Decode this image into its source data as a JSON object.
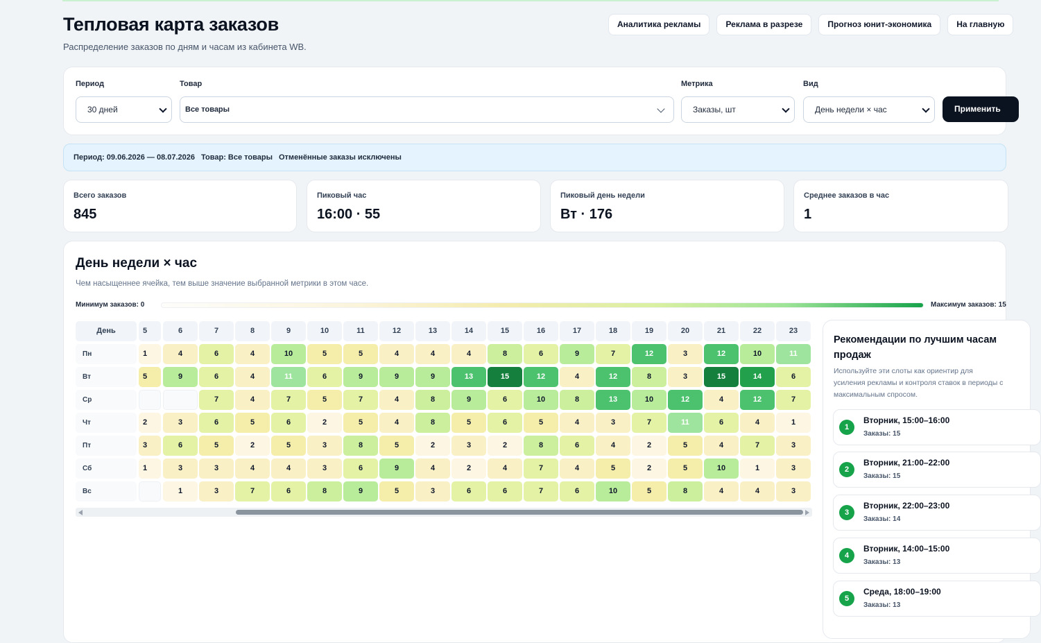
{
  "header": {
    "title": "Тепловая карта заказов",
    "subtitle": "Распределение заказов по дням и часам из кабинета WB.",
    "nav": [
      "Аналитика рекламы",
      "Реклама в разрезе",
      "Прогноз юнит-экономика",
      "На главную"
    ]
  },
  "filters": {
    "period": {
      "label": "Период",
      "value": "30 дней"
    },
    "product": {
      "label": "Товар",
      "value": "Все товары"
    },
    "metric": {
      "label": "Метрика",
      "value": "Заказы, шт"
    },
    "view": {
      "label": "Вид",
      "value": "День недели × час"
    },
    "apply": "Применить"
  },
  "info": {
    "period": "Период: 09.06.2026 — 08.07.2026",
    "product": "Товар: Все товары",
    "note": "Отменённые заказы исключены"
  },
  "kpis": [
    {
      "label": "Всего заказов",
      "value": "845"
    },
    {
      "label": "Пиковый час",
      "value": "16:00 · 55"
    },
    {
      "label": "Пиковый день недели",
      "value": "Вт · 176"
    },
    {
      "label": "Среднее заказов в час",
      "value": "1"
    }
  ],
  "heatmap": {
    "title": "День недели × час",
    "subtitle": "Чем насыщеннее ячейка, тем выше значение выбранной метрики в этом часе.",
    "legend_min": "Минимум заказов: 0",
    "legend_max": "Максимум заказов: 15",
    "day_header": "День",
    "hours": [
      "5",
      "6",
      "7",
      "8",
      "9",
      "10",
      "11",
      "12",
      "13",
      "14",
      "15",
      "16",
      "17",
      "18",
      "19",
      "20",
      "21",
      "22",
      "23"
    ],
    "days": [
      "Пн",
      "Вт",
      "Ср",
      "Чт",
      "Пт",
      "Сб",
      "Вс"
    ],
    "values": [
      [
        1,
        4,
        6,
        4,
        10,
        5,
        5,
        4,
        4,
        4,
        8,
        6,
        9,
        7,
        12,
        3,
        12,
        10,
        11
      ],
      [
        5,
        9,
        6,
        4,
        11,
        6,
        9,
        9,
        9,
        13,
        15,
        12,
        4,
        12,
        8,
        3,
        15,
        14,
        6
      ],
      [
        null,
        null,
        7,
        4,
        7,
        5,
        7,
        4,
        8,
        9,
        6,
        10,
        8,
        13,
        10,
        12,
        4,
        12,
        7
      ],
      [
        2,
        3,
        6,
        5,
        6,
        2,
        5,
        4,
        8,
        5,
        6,
        5,
        4,
        3,
        7,
        11,
        6,
        4,
        1
      ],
      [
        3,
        6,
        5,
        2,
        5,
        3,
        8,
        5,
        2,
        3,
        2,
        8,
        6,
        4,
        2,
        5,
        4,
        7,
        3
      ],
      [
        1,
        3,
        3,
        4,
        4,
        3,
        6,
        9,
        4,
        2,
        4,
        7,
        4,
        5,
        2,
        5,
        10,
        1,
        3
      ],
      [
        null,
        1,
        3,
        7,
        6,
        8,
        9,
        5,
        3,
        6,
        6,
        7,
        6,
        10,
        5,
        8,
        4,
        4,
        3
      ]
    ],
    "max": 15
  },
  "recommendations": {
    "title": "Рекомендации по лучшим часам продаж",
    "description": "Используйте эти слоты как ориентир для усиления рекламы и контроля ставок в периоды с максимальным спросом.",
    "items": [
      {
        "rank": "1",
        "slot": "Вторник, 15:00–16:00",
        "value": "Заказы: 15"
      },
      {
        "rank": "2",
        "slot": "Вторник, 21:00–22:00",
        "value": "Заказы: 15"
      },
      {
        "rank": "3",
        "slot": "Вторник, 22:00–23:00",
        "value": "Заказы: 14"
      },
      {
        "rank": "4",
        "slot": "Вторник, 14:00–15:00",
        "value": "Заказы: 13"
      },
      {
        "rank": "5",
        "slot": "Среда, 18:00–19:00",
        "value": "Заказы: 13"
      }
    ]
  }
}
